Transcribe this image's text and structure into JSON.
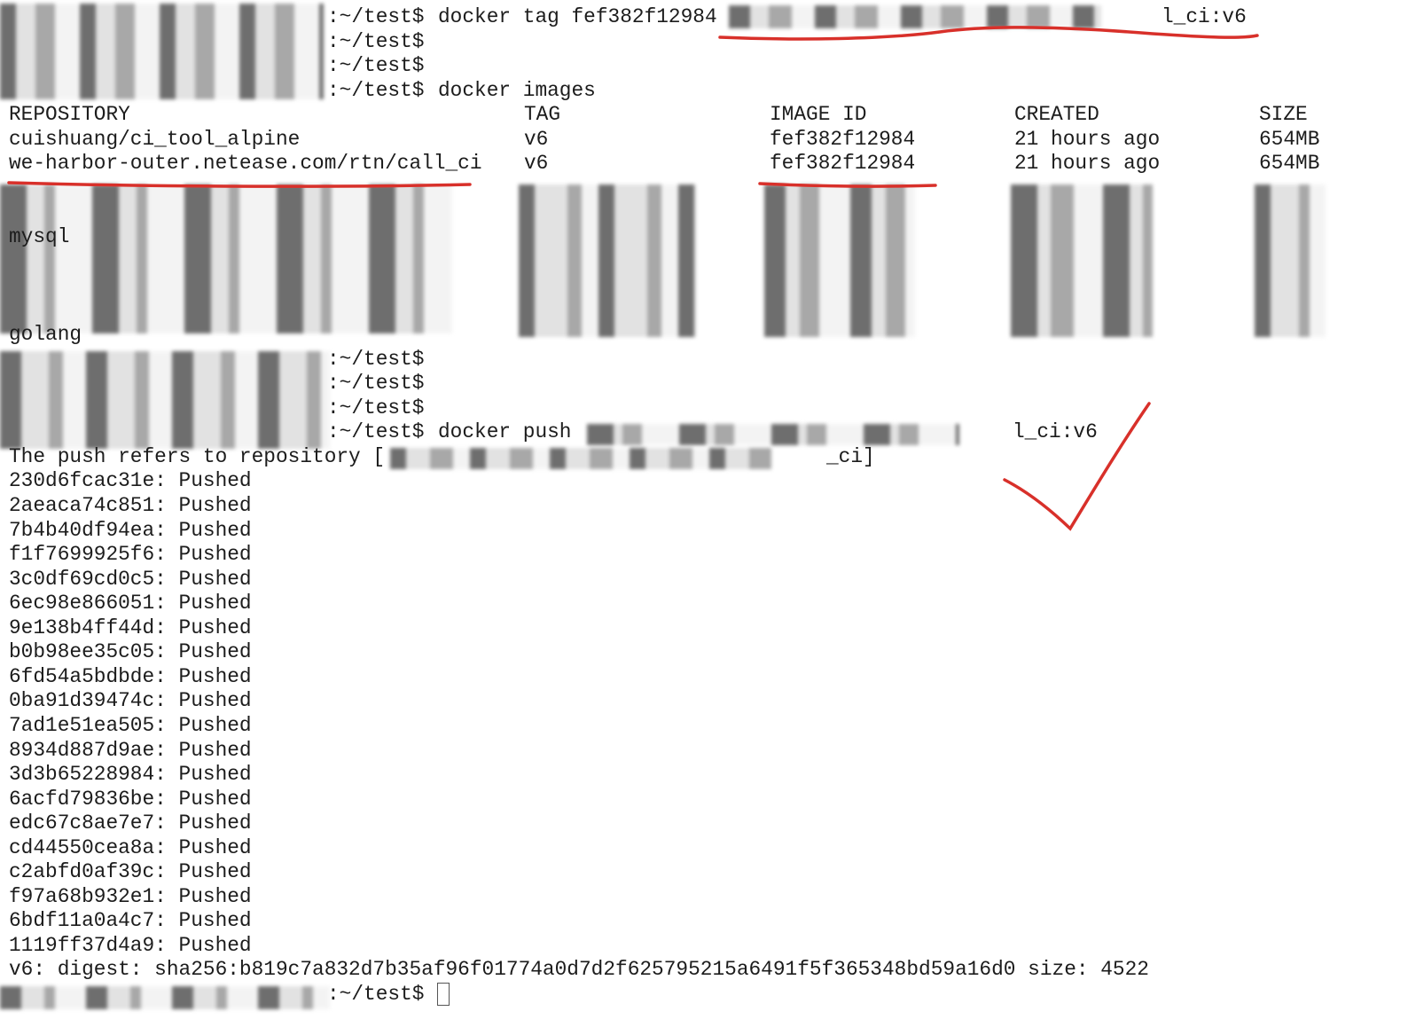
{
  "terminal": {
    "session": [
      {
        "prompt": ":~/test$",
        "command": "docker tag fef382f12984",
        "tail": "l_ci:v6"
      },
      {
        "prompt": ":~/test$"
      },
      {
        "prompt": ":~/test$"
      },
      {
        "prompt": ":~/test$",
        "command": "docker images"
      }
    ],
    "images": {
      "columns": [
        "REPOSITORY",
        "TAG",
        "IMAGE ID",
        "CREATED",
        "SIZE"
      ],
      "rows": [
        [
          "cuishuang/ci_tool_alpine",
          "v6",
          "fef382f12984",
          "21 hours ago",
          "654MB"
        ],
        [
          "we-harbor-outer.netease.com/rtn/call_ci",
          "v6",
          "fef382f12984",
          "21 hours ago",
          "654MB"
        ]
      ],
      "partial_rows": [
        "mysql",
        "golang"
      ]
    },
    "session2": [
      {
        "prompt": ":~/test$"
      },
      {
        "prompt": ":~/test$"
      },
      {
        "prompt": ":~/test$"
      },
      {
        "prompt": ":~/test$",
        "command": "docker push",
        "tail": "l_ci:v6"
      }
    ],
    "push_refers": {
      "head": "The push refers to repository [",
      "tail": "_ci]"
    },
    "layers": [
      "230d6fcac31e: Pushed",
      "2aeaca74c851: Pushed",
      "7b4b40df94ea: Pushed",
      "f1f7699925f6: Pushed",
      "3c0df69cd0c5: Pushed",
      "6ec98e866051: Pushed",
      "9e138b4ff44d: Pushed",
      "b0b98ee35c05: Pushed",
      "6fd54a5bdbde: Pushed",
      "0ba91d39474c: Pushed",
      "7ad1e51ea505: Pushed",
      "8934d887d9ae: Pushed",
      "3d3b65228984: Pushed",
      "6acfd79836be: Pushed",
      "edc67c8ae7e7: Pushed",
      "cd44550cea8a: Pushed",
      "c2abfd0af39c: Pushed",
      "f97a68b932e1: Pushed",
      "6bdf11a0a4c7: Pushed",
      "1119ff37d4a9: Pushed"
    ],
    "digest": "v6: digest: sha256:b819c7a832d7b35af96f01774a0d7d2f625795215a6491f5f365348bd59a16d0 size: 4522",
    "final_prompt": ":~/test$"
  }
}
